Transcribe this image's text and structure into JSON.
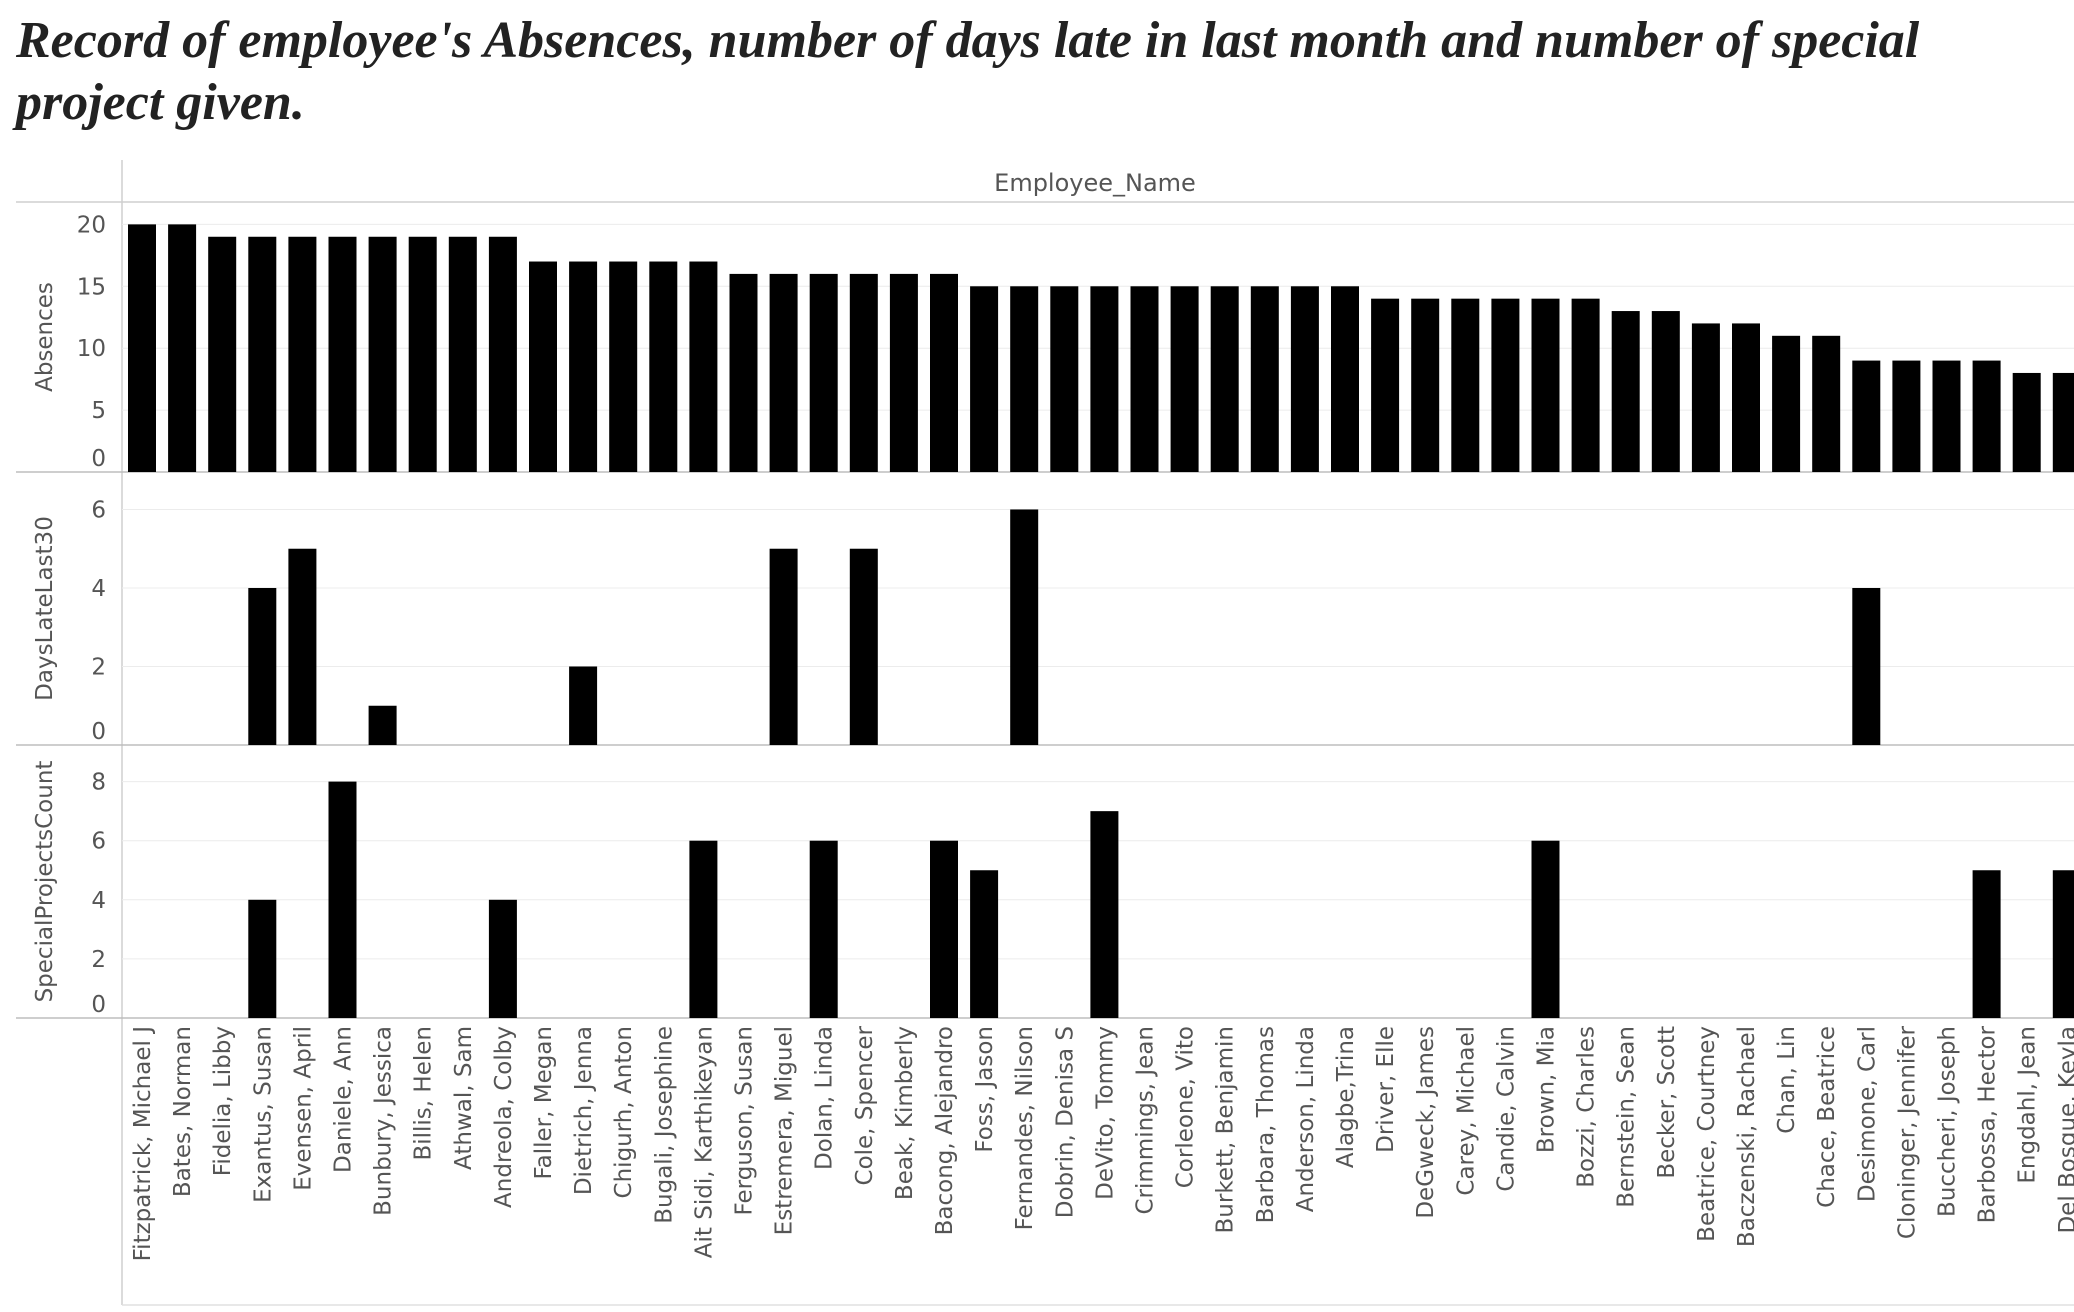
{
  "title": "Record of employee's Absences, number of days late in last month and number of special project given.",
  "chart_data": {
    "type": "bar",
    "header": "Employee_Name",
    "categories": [
      "Fitzpatrick, Michael J",
      "Bates, Norman",
      "Fidelia, Libby",
      "Exantus, Susan",
      "Evensen, April",
      "Daniele, Ann",
      "Bunbury, Jessica",
      "Billis, Helen",
      "Athwal, Sam",
      "Andreola, Colby",
      "Faller, Megan",
      "Dietrich, Jenna",
      "Chigurh, Anton",
      "Bugali, Josephine",
      "Ait Sidi, Karthikeyan",
      "Ferguson, Susan",
      "Estremera, Miguel",
      "Dolan, Linda",
      "Cole, Spencer",
      "Beak, Kimberly",
      "Bacong, Alejandro",
      "Foss, Jason",
      "Fernandes, Nilson",
      "Dobrin, Denisa S",
      "DeVito, Tommy",
      "Crimmings,   Jean",
      "Corleone, Vito",
      "Burkett, Benjamin",
      "Barbara, Thomas",
      "Anderson, Linda",
      "Alagbe,Trina",
      "Driver, Elle",
      "DeGweck,  James",
      "Carey, Michael",
      "Candie, Calvin",
      "Brown, Mia",
      "Bozzi, Charles",
      "Bernstein, Sean",
      "Becker, Scott",
      "Beatrice, Courtney",
      "Baczenski, Rachael",
      "Chan, Lin",
      "Chace, Beatrice",
      "Desimone, Carl",
      "Cloninger, Jennifer",
      "Buccheri, Joseph",
      "Barbossa, Hector",
      "Engdahl, Jean",
      "Del Bosque, Keyla"
    ],
    "series": [
      {
        "name": "Absences",
        "ticks": [
          0,
          5,
          10,
          15,
          20
        ],
        "ylim": [
          0,
          21
        ],
        "values": [
          20,
          20,
          19,
          19,
          19,
          19,
          19,
          19,
          19,
          19,
          17,
          17,
          17,
          17,
          17,
          16,
          16,
          16,
          16,
          16,
          16,
          15,
          15,
          15,
          15,
          15,
          15,
          15,
          15,
          15,
          15,
          14,
          14,
          14,
          14,
          14,
          14,
          13,
          13,
          12,
          12,
          11,
          11,
          9,
          9,
          9,
          9,
          8,
          8
        ]
      },
      {
        "name": "DaysLateLast30",
        "ticks": [
          0,
          2,
          4,
          6
        ],
        "ylim": [
          0,
          6.7
        ],
        "values": [
          0,
          0,
          0,
          4,
          5,
          0,
          1,
          0,
          0,
          0,
          0,
          2,
          0,
          0,
          0,
          0,
          5,
          0,
          5,
          0,
          0,
          0,
          6,
          0,
          0,
          0,
          0,
          0,
          0,
          0,
          0,
          0,
          0,
          0,
          0,
          0,
          0,
          0,
          0,
          0,
          0,
          0,
          0,
          4,
          0,
          0,
          0,
          0,
          0
        ]
      },
      {
        "name": "SpecialProjectsCount",
        "ticks": [
          0,
          2,
          4,
          6,
          8
        ],
        "ylim": [
          0,
          8.9
        ],
        "values": [
          0,
          0,
          0,
          4,
          0,
          8,
          0,
          0,
          0,
          4,
          0,
          0,
          0,
          0,
          6,
          0,
          0,
          6,
          0,
          0,
          6,
          5,
          0,
          0,
          7,
          0,
          0,
          0,
          0,
          0,
          0,
          0,
          0,
          0,
          0,
          6,
          0,
          0,
          0,
          0,
          0,
          0,
          0,
          0,
          0,
          0,
          5,
          0,
          5
        ]
      }
    ],
    "grid": true,
    "bar_color": "#000000"
  }
}
